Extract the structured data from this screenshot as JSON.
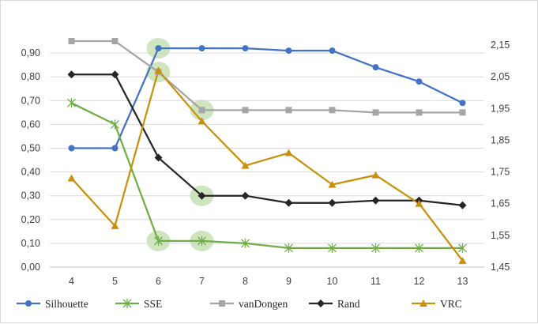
{
  "chart_data": {
    "type": "line",
    "title": "",
    "xlabel": "",
    "ylabel": "",
    "categories": [
      "4",
      "5",
      "6",
      "7",
      "8",
      "9",
      "10",
      "11",
      "12",
      "13"
    ],
    "left_axis": {
      "ylim": [
        0,
        1
      ],
      "tick_values": [
        0,
        0.1,
        0.2,
        0.3,
        0.4,
        0.5,
        0.6,
        0.7,
        0.8,
        0.9
      ],
      "tick_labels": [
        "0,00",
        "0,10",
        "0,20",
        "0,30",
        "0,40",
        "0,50",
        "0,60",
        "0,70",
        "0,80",
        "0,90"
      ]
    },
    "right_axis": {
      "ylim": [
        1.45,
        2.2
      ],
      "tick_values": [
        1.45,
        1.55,
        1.65,
        1.75,
        1.85,
        1.95,
        2.05,
        2.15
      ],
      "tick_labels": [
        "1,45",
        "1,55",
        "1,65",
        "1,75",
        "1,85",
        "1,95",
        "2,05",
        "2,15"
      ]
    },
    "grid": "horizontal",
    "legend_position": "bottom",
    "highlighted_categories": [
      "6",
      "7"
    ],
    "series": [
      {
        "name": "Silhouette",
        "axis": "left",
        "color": "#4472c4",
        "marker": "circle",
        "values": [
          0.5,
          0.5,
          0.92,
          0.92,
          0.92,
          0.91,
          0.91,
          0.84,
          0.78,
          0.69
        ]
      },
      {
        "name": "SSE",
        "axis": "left",
        "color": "#70ad47",
        "marker": "star",
        "values": [
          0.69,
          0.6,
          0.11,
          0.11,
          0.1,
          0.08,
          0.08,
          0.08,
          0.08,
          0.08
        ]
      },
      {
        "name": "vanDongen",
        "axis": "left",
        "color": "#a5a5a5",
        "marker": "square",
        "values": [
          0.95,
          0.95,
          0.82,
          0.66,
          0.66,
          0.66,
          0.66,
          0.65,
          0.65,
          0.65
        ]
      },
      {
        "name": "Rand",
        "axis": "left",
        "color": "#262626",
        "marker": "diamond",
        "values": [
          0.81,
          0.81,
          0.46,
          0.3,
          0.3,
          0.27,
          0.27,
          0.28,
          0.28,
          0.26
        ]
      },
      {
        "name": "VRC",
        "axis": "right",
        "color": "#c9900c",
        "marker": "triangle",
        "values": [
          1.73,
          1.58,
          2.07,
          1.91,
          1.77,
          1.81,
          1.71,
          1.74,
          1.65,
          1.47
        ]
      }
    ],
    "highlights": [
      {
        "category": "6",
        "series": "Silhouette"
      },
      {
        "category": "6",
        "series": "vanDongen"
      },
      {
        "category": "6",
        "series": "SSE"
      },
      {
        "category": "7",
        "series": "vanDongen"
      },
      {
        "category": "7",
        "series": "Rand"
      },
      {
        "category": "7",
        "series": "SSE"
      }
    ],
    "highlight_color": "#c5e0b4"
  }
}
